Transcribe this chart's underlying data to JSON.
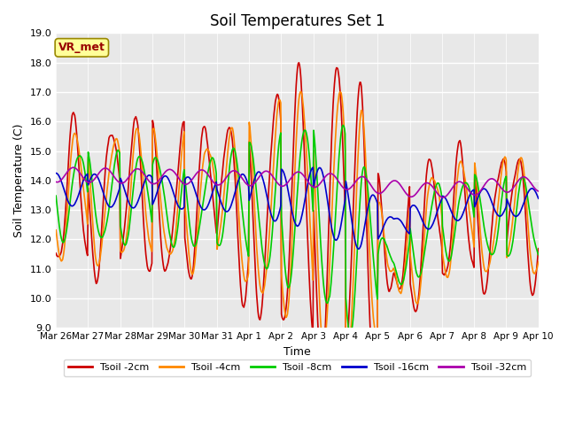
{
  "title": "Soil Temperatures Set 1",
  "xlabel": "Time",
  "ylabel": "Soil Temperature (C)",
  "ylim": [
    9.0,
    19.0
  ],
  "yticks": [
    9.0,
    10.0,
    11.0,
    12.0,
    13.0,
    14.0,
    15.0,
    16.0,
    17.0,
    18.0,
    19.0
  ],
  "bg_color": "#e8e8e8",
  "fig_bg_color": "#ffffff",
  "annotation_label": "VR_met",
  "annotation_bg": "#ffff99",
  "annotation_border": "#998800",
  "series_colors": {
    "Tsoil -2cm": "#cc0000",
    "Tsoil -4cm": "#ff8800",
    "Tsoil -8cm": "#00cc00",
    "Tsoil -16cm": "#0000cc",
    "Tsoil -32cm": "#aa00aa"
  },
  "tick_dates": [
    "Mar 26",
    "Mar 27",
    "Mar 28",
    "Mar 29",
    "Mar 30",
    "Mar 31",
    "Apr 1",
    "Apr 2",
    "Apr 3",
    "Apr 4",
    "Apr 5",
    "Apr 6",
    "Apr 7",
    "Apr 8",
    "Apr 9",
    "Apr 10"
  ],
  "legend_entries": [
    "Tsoil -2cm",
    "Tsoil -4cm",
    "Tsoil -8cm",
    "Tsoil -16cm",
    "Tsoil -32cm"
  ]
}
